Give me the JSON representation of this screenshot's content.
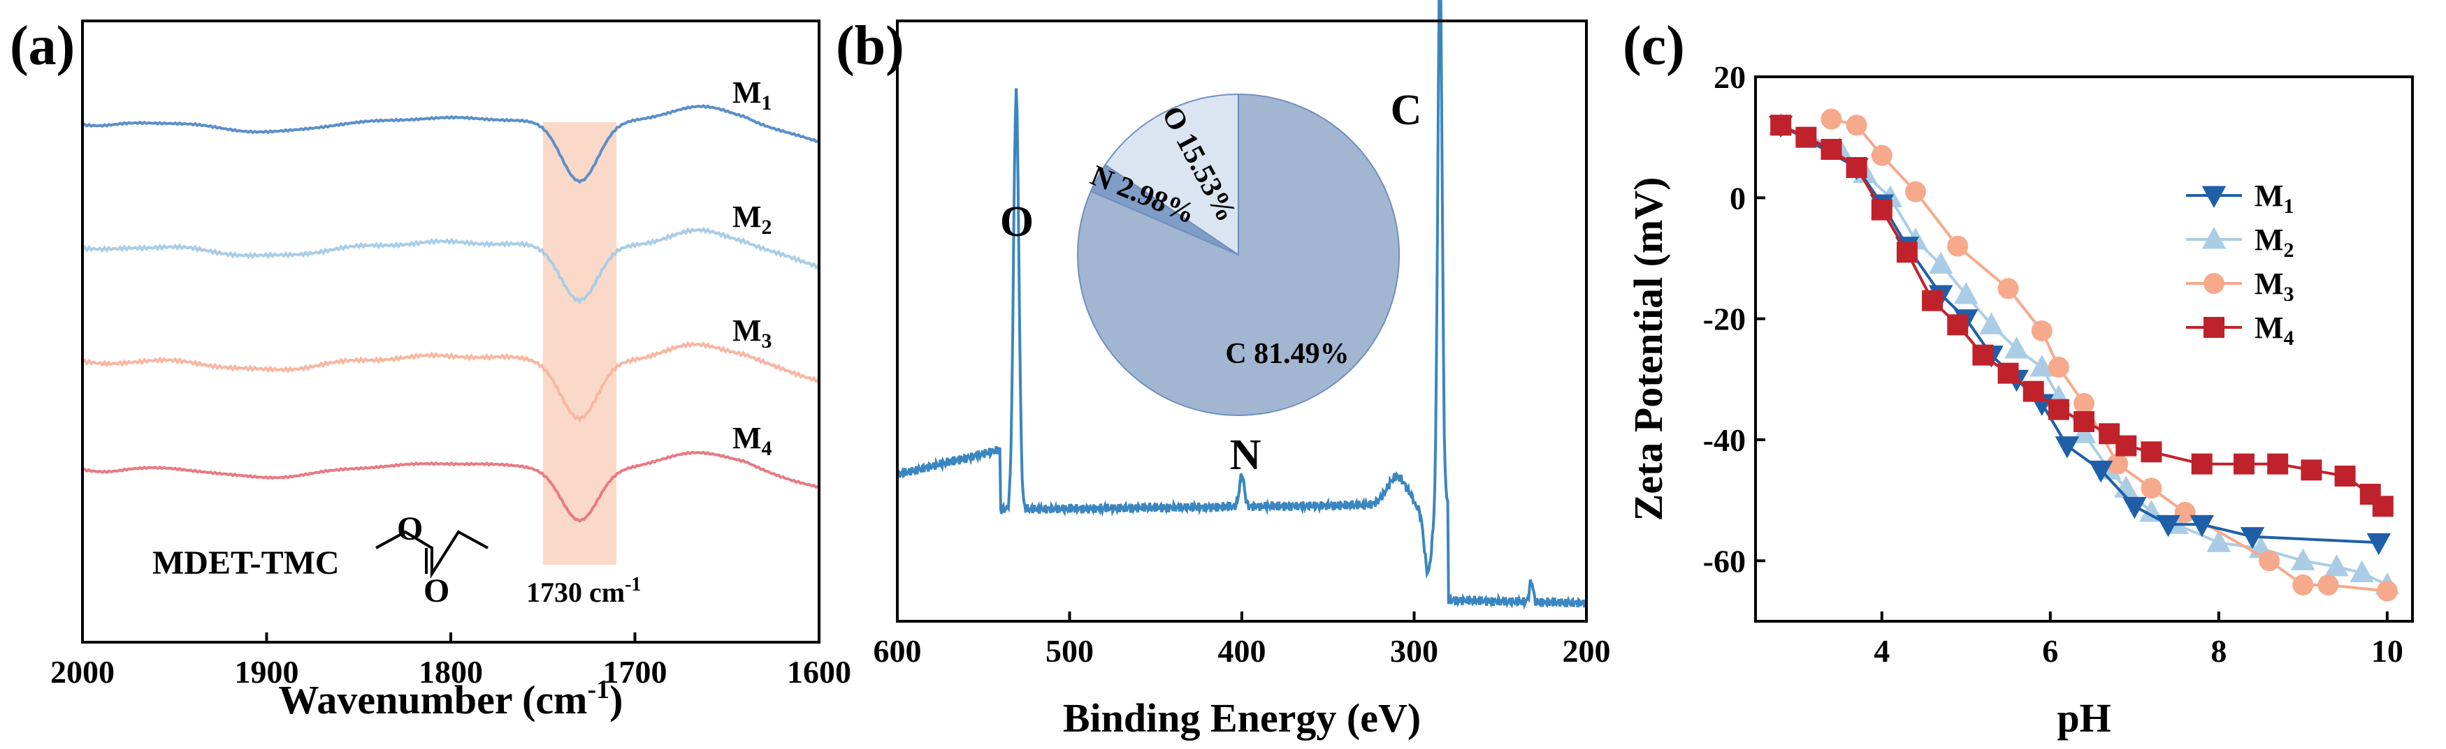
{
  "chart_data": [
    {
      "id": "a",
      "panel_label": "(a)",
      "type": "line",
      "xlabel": "Wavenumber (cm",
      "xlabel_sup": "-1",
      "xlabel_end": ")",
      "xlim": [
        2000,
        1600
      ],
      "xticks": [
        2000,
        1900,
        1800,
        1700,
        1600
      ],
      "yticks_shown": false,
      "band": {
        "from": 1750,
        "to": 1710,
        "color": "#fbd9c8"
      },
      "band_label": "1730 cm",
      "band_label_sup": "-1",
      "molecule_label": "MDET-TMC",
      "molecule_atom": "O",
      "series": [
        {
          "name": "M",
          "sub": "1",
          "color": "#5b8fc9",
          "offset": 3,
          "dip_depth": 0.55,
          "style": "wavy"
        },
        {
          "name": "M",
          "sub": "2",
          "color": "#aacde5",
          "offset": 2,
          "dip_depth": 0.5,
          "style": "noisy"
        },
        {
          "name": "M",
          "sub": "3",
          "color": "#f7b7a3",
          "offset": 1,
          "dip_depth": 0.55,
          "style": "noisy"
        },
        {
          "name": "M",
          "sub": "4",
          "color": "#e77b82",
          "offset": 0,
          "dip_depth": 0.5,
          "style": "wavy"
        }
      ]
    },
    {
      "id": "b",
      "panel_label": "(b)",
      "type": "line",
      "xlabel": "Binding Energy (eV)",
      "xlim": [
        600,
        200
      ],
      "xticks": [
        600,
        500,
        400,
        300,
        200
      ],
      "yticks_shown": false,
      "color": "#3a86c0",
      "peaks": [
        {
          "label": "O",
          "x": 531
        },
        {
          "label": "N",
          "x": 400
        },
        {
          "label": "C",
          "x": 285
        }
      ],
      "inset_pie": {
        "type": "pie",
        "slices": [
          {
            "label": "C 81.49%",
            "value": 81.49,
            "color": "#a2b6d2"
          },
          {
            "label": "N 2.98%",
            "value": 2.98,
            "color": "#7f9dc6"
          },
          {
            "label": "O 15.53%",
            "value": 15.53,
            "color": "#dbe5f1"
          }
        ]
      }
    },
    {
      "id": "c",
      "panel_label": "(c)",
      "type": "line",
      "xlabel": "pH",
      "ylabel": "Zeta Potential (mV)",
      "xlim": [
        2.5,
        10.3
      ],
      "ylim": [
        -70,
        20
      ],
      "xticks": [
        4,
        6,
        8,
        10
      ],
      "yticks": [
        20,
        0,
        -20,
        -40,
        -60
      ],
      "legend_position": "top-right",
      "series": [
        {
          "name": "M",
          "sub": "1",
          "color": "#1f5fa8",
          "marker": "triangle-down",
          "x": [
            2.8,
            3.7,
            4.0,
            4.3,
            4.7,
            5.0,
            5.3,
            5.6,
            5.9,
            6.2,
            6.6,
            7.0,
            7.4,
            7.8,
            8.4,
            9.9
          ],
          "y": [
            12,
            5,
            -1,
            -8,
            -16,
            -20,
            -26,
            -30,
            -34,
            -41,
            -45,
            -51,
            -54,
            -54,
            -56,
            -57
          ]
        },
        {
          "name": "M",
          "sub": "2",
          "color": "#aacde5",
          "marker": "triangle-up",
          "x": [
            2.8,
            3.5,
            3.8,
            4.1,
            4.4,
            4.7,
            5.0,
            5.3,
            5.6,
            5.9,
            6.1,
            6.4,
            6.7,
            6.9,
            7.2,
            7.5,
            8.0,
            8.5,
            9.0,
            9.4,
            9.7,
            10.0
          ],
          "y": [
            12,
            8,
            4,
            0,
            -7,
            -11,
            -16,
            -21,
            -25,
            -28,
            -33,
            -39,
            -45,
            -48,
            -52,
            -54,
            -57,
            -58,
            -60,
            -61,
            -62,
            -64
          ]
        },
        {
          "name": "M",
          "sub": "3",
          "color": "#f7a98c",
          "marker": "circle",
          "x": [
            3.4,
            3.7,
            4.0,
            4.4,
            4.9,
            5.5,
            5.9,
            6.1,
            6.4,
            6.8,
            7.2,
            7.6,
            8.6,
            9.0,
            9.3,
            10.0
          ],
          "y": [
            13,
            12,
            7,
            1,
            -8,
            -15,
            -22,
            -28,
            -34,
            -44,
            -48,
            -52,
            -60,
            -64,
            -64,
            -65
          ]
        },
        {
          "name": "M",
          "sub": "4",
          "color": "#c0222b",
          "marker": "square",
          "x": [
            2.8,
            3.1,
            3.4,
            3.7,
            4.0,
            4.3,
            4.6,
            4.9,
            5.2,
            5.5,
            5.8,
            6.1,
            6.4,
            6.7,
            6.9,
            7.2,
            7.8,
            8.3,
            8.7,
            9.1,
            9.5,
            9.8,
            9.95
          ],
          "y": [
            12,
            10,
            8,
            5,
            -2,
            -9,
            -17,
            -21,
            -26,
            -29,
            -32,
            -35,
            -37,
            -39,
            -41,
            -42,
            -44,
            -44,
            -44,
            -45,
            -46,
            -49,
            -51
          ]
        }
      ]
    }
  ]
}
